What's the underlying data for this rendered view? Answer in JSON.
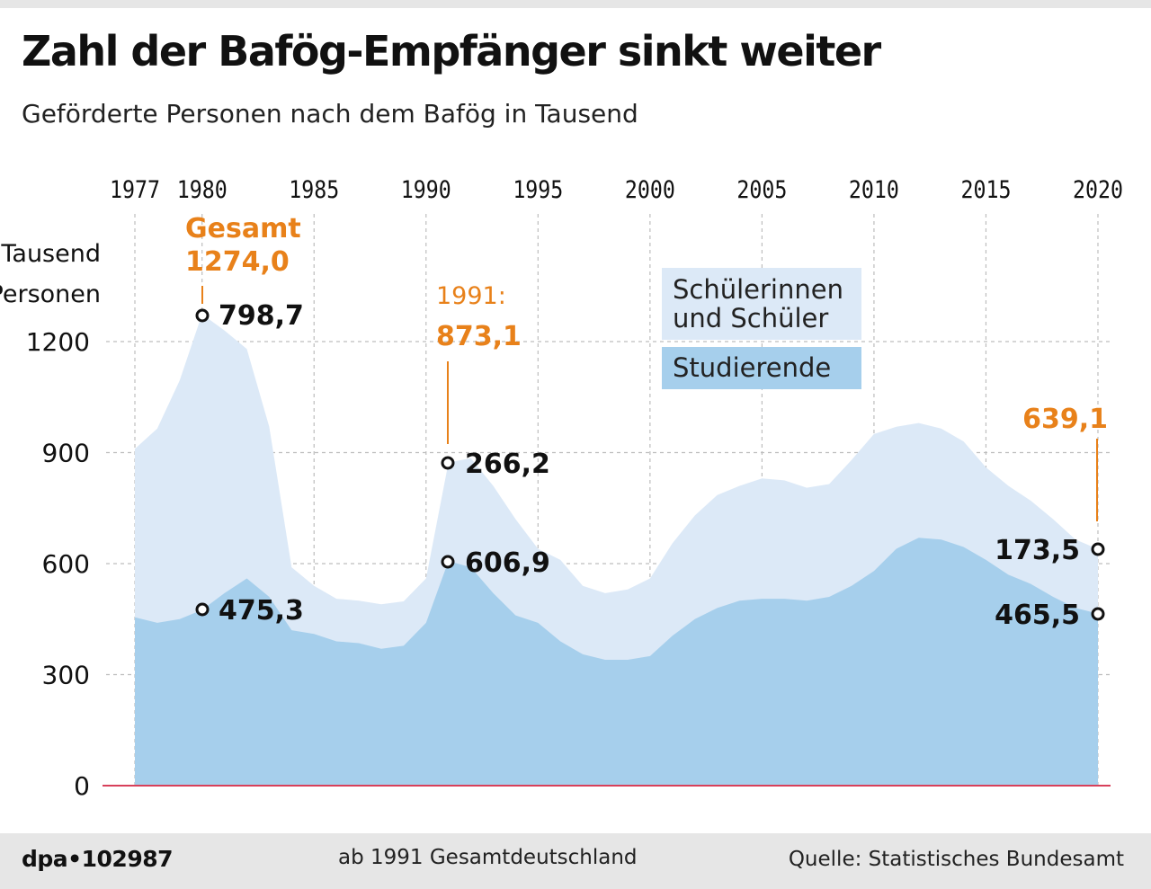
{
  "title": "Zahl der Bafög-Empfänger sinkt weiter",
  "subtitle": "Geförderte Personen nach dem Bafög in Tausend",
  "footer": {
    "code": "dpa•102987",
    "note": "ab 1991 Gesamtdeutschland",
    "source": "Quelle: Statistisches Bundesamt"
  },
  "colors": {
    "schueler": "#dce9f7",
    "studierende": "#a6cfec",
    "accent": "#e8811a",
    "baseline": "#d8405a",
    "grid": "#bdbdbd"
  },
  "chart_data": {
    "type": "area",
    "stacked": true,
    "title": "Zahl der Bafög-Empfänger sinkt weiter",
    "ylabel_lines": [
      "Tausend",
      "Personen"
    ],
    "xlim": [
      1977,
      2020
    ],
    "ylim": [
      0,
      1320
    ],
    "x_ticks": [
      1977,
      1980,
      1985,
      1990,
      1995,
      2000,
      2005,
      2010,
      2015,
      2020
    ],
    "y_ticks": [
      0,
      300,
      600,
      900,
      1200
    ],
    "x": [
      1977,
      1978,
      1979,
      1980,
      1981,
      1982,
      1983,
      1984,
      1985,
      1986,
      1987,
      1988,
      1989,
      1990,
      1991,
      1992,
      1993,
      1994,
      1995,
      1996,
      1997,
      1998,
      1999,
      2000,
      2001,
      2002,
      2003,
      2004,
      2005,
      2006,
      2007,
      2008,
      2009,
      2010,
      2011,
      2012,
      2013,
      2014,
      2015,
      2016,
      2017,
      2018,
      2019,
      2020
    ],
    "series": [
      {
        "name": "Studierende",
        "values": [
          455,
          440,
          450,
          475,
          520,
          560,
          510,
          420,
          410,
          390,
          385,
          370,
          378,
          440,
          607,
          590,
          520,
          460,
          440,
          390,
          355,
          340,
          340,
          350,
          405,
          450,
          480,
          500,
          505,
          505,
          500,
          510,
          540,
          580,
          640,
          670,
          665,
          645,
          610,
          570,
          545,
          510,
          480,
          465
        ]
      },
      {
        "name": "Schülerinnen und Schüler",
        "values": [
          455,
          525,
          645,
          799,
          710,
          620,
          460,
          170,
          130,
          115,
          115,
          120,
          120,
          120,
          266,
          295,
          290,
          260,
          200,
          220,
          185,
          180,
          190,
          210,
          250,
          280,
          305,
          310,
          325,
          320,
          305,
          305,
          340,
          370,
          330,
          310,
          300,
          285,
          250,
          240,
          225,
          210,
          185,
          174
        ]
      }
    ],
    "legend": [
      "Schülerinnen und Schüler",
      "Studierende"
    ],
    "annotations": {
      "a1980": {
        "title": "Gesamt",
        "total": "1274,0",
        "top": "798,7",
        "bottom": "475,3"
      },
      "a1991": {
        "title": "1991:",
        "total": "873,1",
        "top": "266,2",
        "bottom": "606,9"
      },
      "a2020": {
        "total": "639,1",
        "top": "173,5",
        "bottom": "465,5"
      }
    }
  }
}
